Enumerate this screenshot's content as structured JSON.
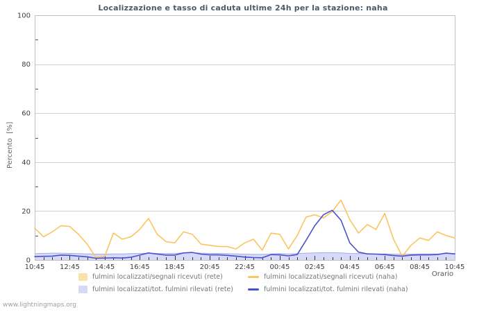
{
  "watermark": "www.lightningmaps.org",
  "chart_data": {
    "type": "area+line",
    "title": "Localizzazione e tasso di caduta ultime 24h per la stazione: naha",
    "ylabel": "Percento  [%]",
    "xlabel": "Orario",
    "ylim": [
      0,
      100
    ],
    "ytick_step": 20,
    "ytick_minor_step": 10,
    "grid": "horizontal major gridlines, light gray",
    "legend_position": "bottom",
    "x_interval_minutes": 30,
    "x_label_every": 4,
    "x": [
      "10:45",
      "11:15",
      "11:45",
      "12:15",
      "12:45",
      "13:15",
      "13:45",
      "14:15",
      "14:45",
      "15:15",
      "15:45",
      "16:15",
      "16:45",
      "17:15",
      "17:45",
      "18:15",
      "18:45",
      "19:15",
      "19:45",
      "20:15",
      "20:45",
      "21:15",
      "21:45",
      "22:15",
      "22:45",
      "23:15",
      "23:45",
      "00:15",
      "00:45",
      "01:15",
      "01:45",
      "02:15",
      "02:45",
      "03:15",
      "03:45",
      "04:15",
      "04:45",
      "05:15",
      "05:45",
      "06:15",
      "06:45",
      "07:15",
      "07:45",
      "08:15",
      "08:45",
      "09:15",
      "09:45",
      "10:15",
      "10:45"
    ],
    "series": [
      {
        "name": "fulmini localizzati/segnali ricevuti (rete)",
        "type": "area",
        "fill": "#fbe2a9",
        "fill_opacity": 0.7,
        "edge": "#d9c49c",
        "values": [
          0.8,
          0.8,
          0.8,
          0.8,
          0.8,
          0.8,
          0.8,
          0.7,
          0.7,
          0.8,
          0.8,
          0.8,
          0.8,
          0.9,
          0.8,
          0.8,
          0.8,
          0.9,
          0.9,
          0.8,
          0.8,
          0.8,
          0.8,
          0.8,
          0.8,
          0.7,
          0.7,
          0.8,
          0.8,
          0.8,
          0.8,
          0.9,
          0.9,
          0.9,
          0.9,
          0.9,
          0.8,
          0.8,
          0.8,
          0.8,
          0.8,
          0.7,
          0.7,
          0.8,
          0.8,
          0.8,
          0.8,
          0.8,
          0.8
        ]
      },
      {
        "name": "fulmini localizzati/tot. fulmini rilevati (rete)",
        "type": "area",
        "fill": "#d7daf6",
        "fill_opacity": 1,
        "edge": "#a6abe4",
        "values": [
          2.6,
          2.7,
          2.8,
          2.8,
          2.7,
          2.6,
          2.5,
          2.4,
          2.4,
          2.5,
          2.5,
          2.6,
          2.7,
          2.8,
          2.7,
          2.6,
          2.7,
          2.9,
          3.0,
          2.8,
          2.7,
          2.7,
          2.6,
          2.5,
          2.4,
          2.3,
          2.3,
          2.5,
          2.6,
          2.5,
          2.6,
          2.8,
          2.9,
          3.0,
          3.0,
          2.9,
          2.7,
          2.6,
          2.6,
          2.5,
          2.5,
          2.4,
          2.3,
          2.4,
          2.5,
          2.5,
          2.5,
          2.6,
          2.6
        ]
      },
      {
        "name": "fulmini localizzati/segnali ricevuti (naha)",
        "type": "line",
        "color": "#fac45e",
        "values": [
          13,
          9.5,
          11.5,
          14,
          13.7,
          10.5,
          6.5,
          1,
          1.5,
          11,
          8.5,
          9.5,
          12.5,
          17,
          10.5,
          7.5,
          7,
          11.5,
          10.5,
          6.5,
          6,
          5.5,
          5.5,
          4.5,
          7,
          8.5,
          4,
          11,
          10.5,
          4.5,
          10,
          17.5,
          18.5,
          17.2,
          19.8,
          24.5,
          16.5,
          11,
          14.5,
          12.5,
          19,
          8.5,
          1.5,
          6,
          9,
          8,
          11.5,
          10,
          9
        ]
      },
      {
        "name": "fulmini localizzati/tot. fulmini rilevati (naha)",
        "type": "line",
        "color": "#4a50cc",
        "values": [
          1.4,
          1.5,
          1.6,
          2,
          1.9,
          1.6,
          1.3,
          0.7,
          0.8,
          0.9,
          0.8,
          1.1,
          2,
          2.9,
          2.4,
          2,
          2,
          2.9,
          3.1,
          2.4,
          2.1,
          2.1,
          1.9,
          1.6,
          1.2,
          1,
          0.9,
          2.2,
          2.1,
          1.7,
          2.2,
          8,
          14,
          18.5,
          20.3,
          16.3,
          7,
          3.2,
          2.5,
          2.4,
          2.2,
          1.8,
          1.6,
          2,
          2.1,
          2.1,
          2.2,
          2.8,
          2.5
        ]
      }
    ]
  },
  "legend": {
    "items": [
      {
        "label": "fulmini localizzati/segnali ricevuti (rete)",
        "swatch": "area",
        "color": "#fbe2a9"
      },
      {
        "label": "fulmini localizzati/segnali ricevuti (naha)",
        "swatch": "line",
        "color": "#fac45e"
      },
      {
        "label": "fulmini localizzati/tot. fulmini rilevati (rete)",
        "swatch": "area",
        "color": "#d7daf6"
      },
      {
        "label": "fulmini localizzati/tot. fulmini rilevati (naha)",
        "swatch": "line",
        "color": "#4a50cc"
      }
    ]
  },
  "colors": {
    "title": "#4d5a68",
    "axis_text": "#3d3d3d",
    "grid": "#cfcfcf",
    "border": "#c0c0c0",
    "tick": "#333333"
  }
}
